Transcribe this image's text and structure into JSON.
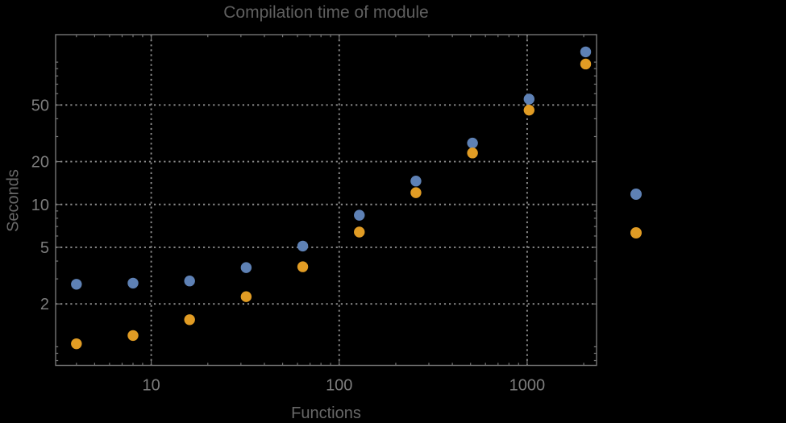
{
  "chart_data": {
    "type": "scatter",
    "title": "Compilation time of module",
    "xlabel": "Functions",
    "ylabel": "Seconds",
    "x_scale": "log",
    "y_scale": "log",
    "xlim": [
      3.1,
      2340
    ],
    "ylim": [
      0.74,
      156
    ],
    "grid": true,
    "x": [
      4,
      8,
      16,
      32,
      64,
      128,
      256,
      512,
      1024,
      2048
    ],
    "series": [
      {
        "name": "blue-series",
        "color": "#5E81B5",
        "values": [
          2.75,
          2.8,
          2.9,
          3.6,
          5.1,
          8.4,
          14.6,
          27,
          55,
          118
        ]
      },
      {
        "name": "orange-series",
        "color": "#E19C24",
        "values": [
          1.05,
          1.2,
          1.55,
          2.25,
          3.65,
          6.4,
          12.1,
          23,
          46,
          97
        ]
      }
    ],
    "x_ticks": {
      "major": [
        10,
        100,
        1000
      ],
      "labels": [
        "10",
        "100",
        "1000"
      ]
    },
    "y_ticks": {
      "major": [
        2,
        5,
        10,
        20,
        50
      ],
      "labels": [
        "2",
        "5",
        "10",
        "20",
        "50"
      ]
    },
    "gridlines": {
      "x": [
        10,
        100,
        1000
      ],
      "y": [
        2,
        5,
        10,
        20,
        50
      ],
      "style": "dotted"
    },
    "legend": {
      "position": "right",
      "markers": [
        {
          "color": "#5E81B5"
        },
        {
          "color": "#E19C24"
        }
      ]
    },
    "marker": {
      "shape": "circle",
      "radius": 6.7
    },
    "colors": {
      "background": "#000000",
      "frame": "#767676",
      "gridline": "#8d8d8d",
      "tick_labels": "#7d7d7d",
      "title": "#5f5f5f",
      "axis_labels": "#686868"
    }
  }
}
